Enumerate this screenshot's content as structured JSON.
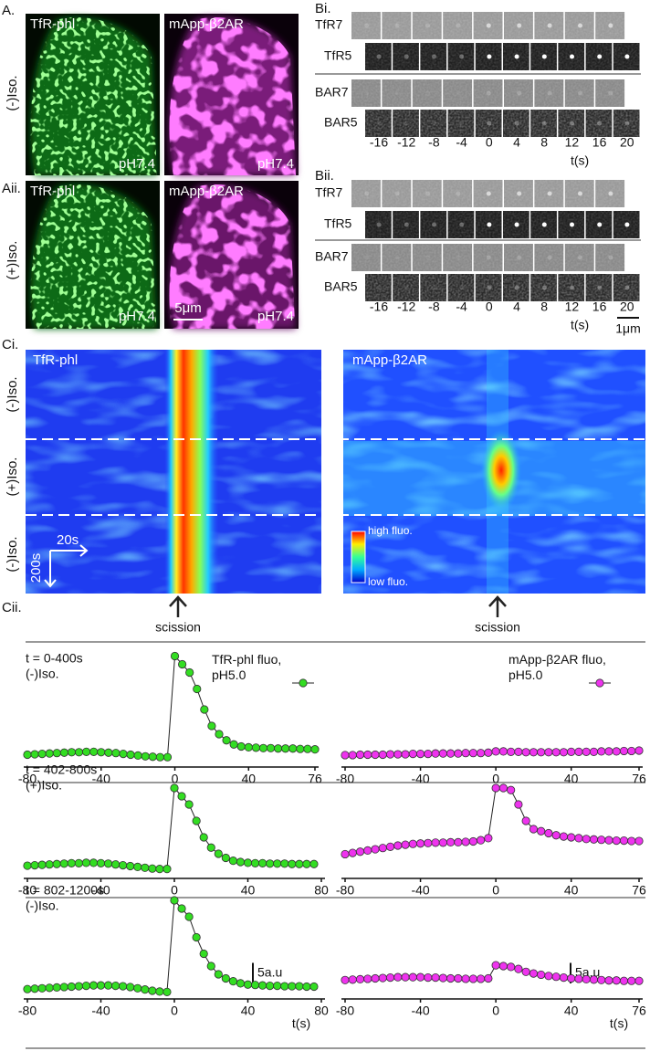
{
  "panel_a": {
    "label": "A.",
    "condition": "(-)Iso.",
    "left": {
      "title": "TfR-phl",
      "ph": "pH7.4"
    },
    "right": {
      "title": "mApp-β2AR",
      "ph": "pH7.4"
    }
  },
  "panel_aii": {
    "label": "Aii.",
    "condition": "(+)Iso.",
    "left": {
      "title": "TfR-phl",
      "ph": "pH7.4"
    },
    "right": {
      "title": "mApp-β2AR",
      "ph": "pH7.4"
    },
    "scale": "5μm"
  },
  "panel_bi": {
    "label": "Bi.",
    "rows": [
      "TfR7",
      "TfR5",
      "BAR7",
      "BAR5"
    ],
    "times": [
      -16,
      -12,
      -8,
      -4,
      0,
      4,
      8,
      12,
      16,
      20
    ],
    "xlabel": "t(s)"
  },
  "panel_bii": {
    "label": "Bii.",
    "rows": [
      "TfR7",
      "TfR5",
      "BAR7",
      "BAR5"
    ],
    "times": [
      -16,
      -12,
      -8,
      -4,
      0,
      4,
      8,
      12,
      16,
      20
    ],
    "xlabel": "t(s)",
    "scale": "1μm"
  },
  "panel_ci": {
    "label": "Ci.",
    "left_title": "TfR-phl",
    "right_title": "mApp-β2AR",
    "conditions": [
      "(-)Iso.",
      "(+)Iso.",
      "(-)Iso."
    ],
    "x_scale": "20s",
    "y_scale": "200s",
    "colorbar": [
      "high fluo.",
      "low fluo."
    ],
    "marker": "scission"
  },
  "panel_cii": {
    "label": "Cii."
  },
  "chart_data": [
    {
      "type": "line",
      "annotation": [
        "t = 0-400s",
        "(-)Iso."
      ],
      "x": [
        -80,
        -76,
        -72,
        -68,
        -64,
        -60,
        -56,
        -52,
        -48,
        -44,
        -40,
        -36,
        -32,
        -28,
        -24,
        -20,
        -16,
        -12,
        -8,
        -4,
        0,
        4,
        8,
        12,
        16,
        20,
        24,
        28,
        32,
        36,
        40,
        44,
        48,
        52,
        56,
        60,
        64,
        68,
        72,
        76
      ],
      "xlim": [
        -80,
        76
      ],
      "xticks": [
        -80,
        -40,
        0,
        40,
        76
      ],
      "ylim": [
        0,
        30
      ],
      "series": [
        {
          "name": "TfR-phl fluo, pH5.0",
          "color": "#33dd22",
          "values": [
            3,
            3.1,
            3.2,
            3.3,
            3.4,
            3.5,
            3.6,
            3.6,
            3.7,
            3.7,
            3.6,
            3.5,
            3.4,
            3.2,
            3.0,
            2.8,
            2.6,
            2.5,
            2.4,
            2.4,
            27,
            25,
            23,
            19,
            14,
            10,
            8,
            6.5,
            5.5,
            5,
            4.8,
            4.7,
            4.6,
            4.6,
            4.5,
            4.5,
            4.5,
            4.4,
            4.4,
            4.3
          ]
        }
      ]
    },
    {
      "type": "line",
      "x": [
        -80,
        -76,
        -72,
        -68,
        -64,
        -60,
        -56,
        -52,
        -48,
        -44,
        -40,
        -36,
        -32,
        -28,
        -24,
        -20,
        -16,
        -12,
        -8,
        -4,
        0,
        4,
        8,
        12,
        16,
        20,
        24,
        28,
        32,
        36,
        40,
        44,
        48,
        52,
        56,
        60,
        64,
        68,
        72,
        76
      ],
      "xlim": [
        -80,
        76
      ],
      "xticks": [
        -80,
        -40,
        0,
        40,
        76
      ],
      "ylim": [
        0,
        30
      ],
      "series": [
        {
          "name": "mApp-β2AR fluo, pH5.0",
          "color": "#ee33ee",
          "values": [
            2.9,
            2.9,
            3,
            3,
            3,
            3,
            3.1,
            3.1,
            3.1,
            3.2,
            3.2,
            3.2,
            3.3,
            3.3,
            3.3,
            3.3,
            3.4,
            3.4,
            3.4,
            3.5,
            3.8,
            3.8,
            3.7,
            3.7,
            3.6,
            3.6,
            3.6,
            3.6,
            3.6,
            3.6,
            3.7,
            3.7,
            3.7,
            3.7,
            3.8,
            3.8,
            3.8,
            3.9,
            3.9,
            4.0
          ]
        }
      ]
    },
    {
      "type": "line",
      "annotation": [
        "t = 402-800s",
        "(+)Iso."
      ],
      "x": [
        -80,
        -76,
        -72,
        -68,
        -64,
        -60,
        -56,
        -52,
        -48,
        -44,
        -40,
        -36,
        -32,
        -28,
        -24,
        -20,
        -16,
        -12,
        -8,
        -4,
        0,
        4,
        8,
        12,
        16,
        20,
        24,
        28,
        32,
        36,
        40,
        44,
        48,
        52,
        56,
        60,
        64,
        68,
        72,
        76
      ],
      "xlim": [
        -80,
        80
      ],
      "xticks": [
        -80,
        -40,
        0,
        40,
        80
      ],
      "ylim": [
        0,
        30
      ],
      "series": [
        {
          "color": "#33dd22",
          "values": [
            3.1,
            3.2,
            3.3,
            3.4,
            3.5,
            3.6,
            3.7,
            3.7,
            3.8,
            3.8,
            3.7,
            3.6,
            3.4,
            3.2,
            3.0,
            2.8,
            2.6,
            2.4,
            2.3,
            2.3,
            22,
            20,
            18,
            14,
            10,
            7.5,
            6,
            5,
            4.3,
            4,
            3.8,
            3.7,
            3.7,
            3.6,
            3.6,
            3.6,
            3.5,
            3.5,
            3.5,
            3.5
          ]
        }
      ]
    },
    {
      "type": "line",
      "x": [
        -80,
        -76,
        -72,
        -68,
        -64,
        -60,
        -56,
        -52,
        -48,
        -44,
        -40,
        -36,
        -32,
        -28,
        -24,
        -20,
        -16,
        -12,
        -8,
        -4,
        0,
        4,
        8,
        12,
        16,
        20,
        24,
        28,
        32,
        36,
        40,
        44,
        48,
        52,
        56,
        60,
        64,
        68,
        72,
        76
      ],
      "xlim": [
        -80,
        76
      ],
      "xticks": [
        -80,
        -40,
        0,
        40,
        76
      ],
      "ylim": [
        0,
        30
      ],
      "series": [
        {
          "color": "#ee33ee",
          "values": [
            5.9,
            6.2,
            6.5,
            6.8,
            7.1,
            7.4,
            7.7,
            8,
            8.2,
            8.4,
            8.5,
            8.6,
            8.7,
            8.7,
            8.8,
            8.8,
            8.9,
            9,
            9.3,
            9.8,
            22,
            22,
            21.5,
            18,
            14,
            12,
            11.5,
            11,
            10.5,
            10.2,
            10,
            9.8,
            9.6,
            9.5,
            9.4,
            9.3,
            9.2,
            9.2,
            9.1,
            9.1
          ]
        }
      ]
    },
    {
      "type": "line",
      "annotation": [
        "t = 802-1200s",
        "(-)Iso."
      ],
      "x": [
        -80,
        -76,
        -72,
        -68,
        -64,
        -60,
        -56,
        -52,
        -48,
        -44,
        -40,
        -36,
        -32,
        -28,
        -24,
        -20,
        -16,
        -12,
        -8,
        -4,
        0,
        4,
        8,
        12,
        16,
        20,
        24,
        28,
        32,
        36,
        40,
        44,
        48,
        52,
        56,
        60,
        64,
        68,
        72,
        76
      ],
      "xlim": [
        -80,
        80
      ],
      "xticks": [
        -80,
        -40,
        0,
        40,
        80
      ],
      "ylim": [
        0,
        30
      ],
      "xlabel": "t(s)",
      "scale_bar": {
        "value": 5,
        "label": "5a.u"
      },
      "series": [
        {
          "color": "#33dd22",
          "values": [
            2.4,
            2.5,
            2.6,
            2.7,
            2.8,
            2.9,
            3,
            3.1,
            3.2,
            3.3,
            3.3,
            3.3,
            3.2,
            3.1,
            2.9,
            2.6,
            2.3,
            2,
            1.8,
            1.7,
            24,
            22,
            20,
            15,
            11,
            8,
            6,
            5,
            4.3,
            3.8,
            3.5,
            3.4,
            3.3,
            3.2,
            3.2,
            3.1,
            3.1,
            3.1,
            3.0,
            3.0
          ]
        }
      ]
    },
    {
      "type": "line",
      "x": [
        -80,
        -76,
        -72,
        -68,
        -64,
        -60,
        -56,
        -52,
        -48,
        -44,
        -40,
        -36,
        -32,
        -28,
        -24,
        -20,
        -16,
        -12,
        -8,
        -4,
        0,
        4,
        8,
        12,
        16,
        20,
        24,
        28,
        32,
        36,
        40,
        44,
        48,
        52,
        56,
        60,
        64,
        68,
        72,
        76
      ],
      "xlim": [
        -80,
        76
      ],
      "xticks": [
        -80,
        -40,
        0,
        40,
        76
      ],
      "ylim": [
        0,
        30
      ],
      "xlabel": "t(s)",
      "scale_bar": {
        "value": 5,
        "label": "5a.u"
      },
      "series": [
        {
          "color": "#ee33ee",
          "values": [
            4.6,
            4.7,
            4.8,
            4.9,
            5,
            5.1,
            5.2,
            5.3,
            5.3,
            5.3,
            5.3,
            5.2,
            5.2,
            5.1,
            5,
            5,
            4.9,
            4.9,
            4.9,
            5,
            8.2,
            8,
            7.8,
            7.3,
            6.6,
            6.2,
            5.9,
            5.6,
            5.4,
            5.2,
            5,
            4.9,
            4.8,
            4.7,
            4.6,
            4.5,
            4.5,
            4.4,
            4.4,
            4.4
          ]
        }
      ]
    }
  ]
}
